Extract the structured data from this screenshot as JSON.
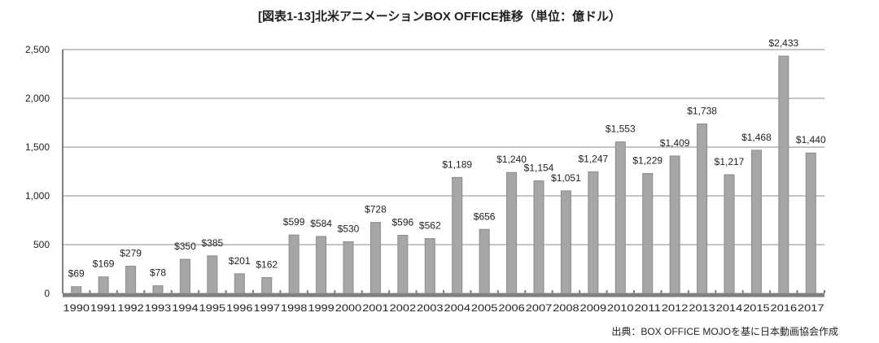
{
  "chart_data": {
    "type": "bar",
    "title": "[図表1-13]北米アニメーションBOX OFFICE推移（単位：億ドル）",
    "source": "出典：BOX OFFICE MOJOを基に日本動画協会作成",
    "categories": [
      "1990",
      "1991",
      "1992",
      "1993",
      "1994",
      "1995",
      "1996",
      "1997",
      "1998",
      "1999",
      "2000",
      "2001",
      "2002",
      "2003",
      "2004",
      "2005",
      "2006",
      "2007",
      "2008",
      "2009",
      "2010",
      "2011",
      "2012",
      "2013",
      "2014",
      "2015",
      "2016",
      "2017"
    ],
    "values": [
      69,
      169,
      279,
      78,
      350,
      385,
      201,
      162,
      599,
      584,
      530,
      728,
      596,
      562,
      1189,
      656,
      1240,
      1154,
      1051,
      1247,
      1553,
      1229,
      1409,
      1738,
      1217,
      1468,
      2433,
      1440
    ],
    "data_labels": [
      "$69",
      "$169",
      "$279",
      "$78",
      "$350",
      "$385",
      "$201",
      "$162",
      "$599",
      "$584",
      "$530",
      "$728",
      "$596",
      "$562",
      "$1,189",
      "$656",
      "$1,240",
      "$1,154",
      "$1,051",
      "$1,247",
      "$1,553",
      "$1,229",
      "$1,409",
      "$1,738",
      "$1,217",
      "$1,468",
      "$2,433",
      "$1,440"
    ],
    "y_ticks": [
      "0",
      "500",
      "1,000",
      "1,500",
      "2,000",
      "2,500"
    ],
    "y_tick_values": [
      0,
      500,
      1000,
      1500,
      2000,
      2500
    ],
    "ylim": [
      0,
      2500
    ],
    "xlabel": "",
    "ylabel": "",
    "grid": true,
    "legend": "none",
    "colors": {
      "bar": "#a6a6a6",
      "bar_edge": "#8a8a8a",
      "grid": "#c4c4c4",
      "axis": "#7f7f7f"
    }
  }
}
